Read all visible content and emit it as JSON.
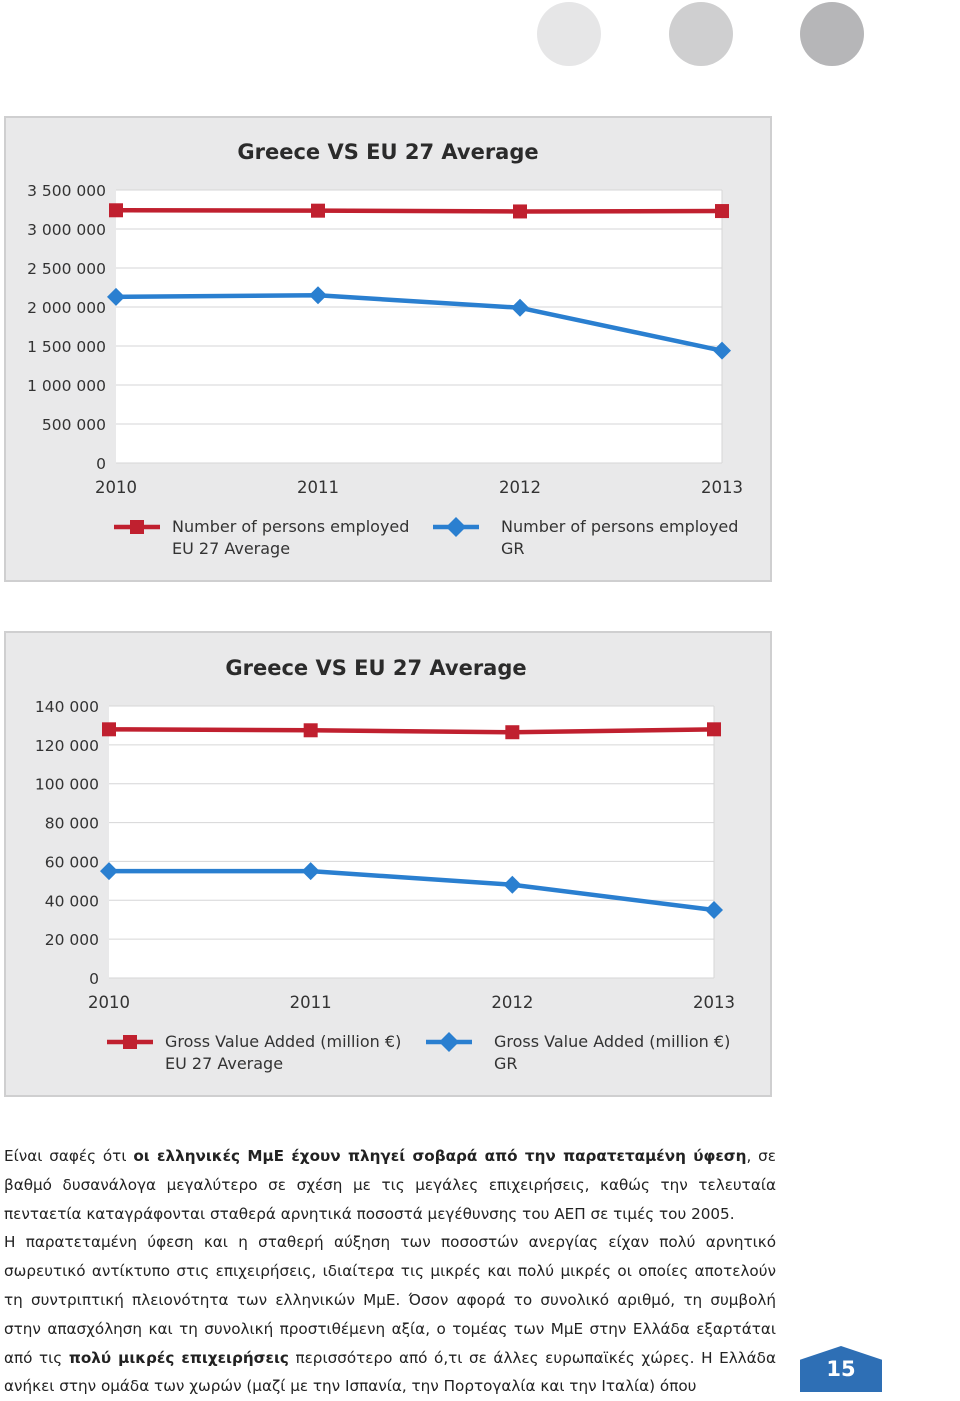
{
  "decor": {
    "dot_colors": [
      "#e6e6e7",
      "#cfcfd0",
      "#b6b6b8"
    ]
  },
  "chart_data": [
    {
      "type": "line",
      "title": "Greece VS EU 27 Average",
      "x": [
        "2010",
        "2011",
        "2012",
        "2013"
      ],
      "y_ticks": [
        "3 500 000",
        "3 000 000",
        "2 500 000",
        "2 000 000",
        "1 500 000",
        "1 000 000",
        "500 000",
        "0"
      ],
      "ylim": [
        0,
        3500000
      ],
      "grid": true,
      "legend_position": "bottom",
      "series": [
        {
          "name_line1": "Number of persons employed",
          "name_line2": "EU 27 Average",
          "color": "#c0202f",
          "marker": "square",
          "values": [
            3240000,
            3235000,
            3225000,
            3230000
          ]
        },
        {
          "name_line1": "Number of persons employed",
          "name_line2": "GR",
          "color": "#2a7fd0",
          "marker": "diamond",
          "values": [
            2130000,
            2150000,
            1990000,
            1440000
          ]
        }
      ]
    },
    {
      "type": "line",
      "title": "Greece VS EU 27 Average",
      "x": [
        "2010",
        "2011",
        "2012",
        "2013"
      ],
      "y_ticks": [
        "140 000",
        "120 000",
        "100 000",
        "80 000",
        "60 000",
        "40 000",
        "20 000",
        "0"
      ],
      "ylim": [
        0,
        140000
      ],
      "grid": true,
      "legend_position": "bottom",
      "series": [
        {
          "name_line1": "Gross Value Added (million €)",
          "name_line2": "EU 27 Average",
          "color": "#c0202f",
          "marker": "square",
          "values": [
            128000,
            127500,
            126500,
            128000
          ]
        },
        {
          "name_line1": "Gross Value Added (million €)",
          "name_line2": "GR",
          "color": "#2a7fd0",
          "marker": "diamond",
          "values": [
            55000,
            55000,
            48000,
            35000
          ]
        }
      ]
    }
  ],
  "body": {
    "p1_a": "Είναι σαφές ότι ",
    "p1_b": "οι ελληνικές ΜμΕ έχουν πληγεί σοβαρά από την παρατεταμένη ύφεση",
    "p1_c": ", σε βαθμό δυσανάλογα μεγαλύτερο σε σχέση με τις μεγάλες επιχειρήσεις, καθώς την τελευταία πενταετία καταγράφονται σταθερά αρνητικά ποσοστά μεγέθυνσης του ΑΕΠ σε τιμές του 2005.",
    "p2_a": "Η παρατεταμένη ύφεση και η σταθερή αύξηση των ποσοστών ανεργίας είχαν πολύ αρνητικό σωρευτικό αντίκτυπο στις επιχειρήσεις, ιδιαίτερα τις μικρές και πολύ μικρές οι οποίες αποτελούν τη συντριπτική πλειονότητα των ελληνικών ΜμΕ. Όσον αφορά το συνολικό αριθμό, τη συμβολή στην απασχόληση και τη συνολική προστιθέμενη αξία, ο τομέας των ΜμΕ στην Ελλάδα εξαρτάται από τις ",
    "p2_b": "πολύ μικρές επιχειρήσεις",
    "p2_c": " περισσότερο από ό,τι σε άλλες ευρωπαϊκές χώρες. Η Ελλάδα ανήκει στην ομάδα των χωρών (μαζί με την Ισπανία, την Πορτογαλία και την Ιταλία) όπου"
  },
  "page_number": "15"
}
